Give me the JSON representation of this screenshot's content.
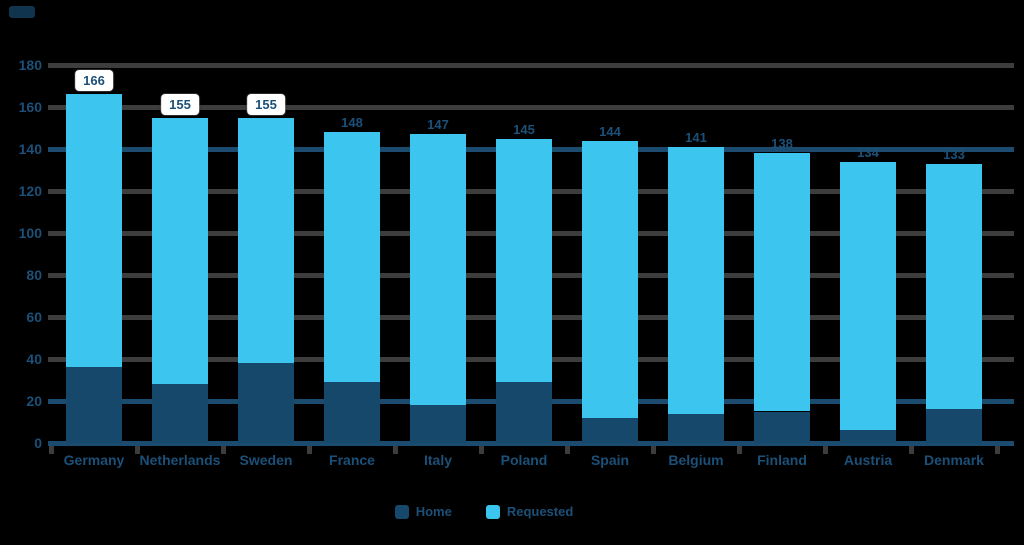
{
  "chart_data": {
    "type": "bar",
    "stacked": true,
    "title": "",
    "categories": [
      "Germany",
      "Netherlands",
      "Sweden",
      "France",
      "Italy",
      "Poland",
      "Spain",
      "Belgium",
      "Finland",
      "Austria",
      "Denmark"
    ],
    "series": [
      {
        "name": "Home",
        "color": "#15486b",
        "values": [
          36,
          28,
          38,
          29,
          18,
          29,
          12,
          14,
          15,
          6,
          16
        ]
      },
      {
        "name": "Requested",
        "color": "#3cc6ef",
        "values": [
          130,
          127,
          117,
          119,
          129,
          116,
          132,
          127,
          123,
          128,
          117
        ]
      }
    ],
    "totals": [
      166,
      155,
      155,
      148,
      147,
      145,
      144,
      141,
      138,
      134,
      133
    ],
    "total_label_pill": [
      true,
      true,
      true,
      false,
      false,
      false,
      false,
      false,
      false,
      false,
      false
    ],
    "y_axis": {
      "min": 0,
      "max": 180,
      "step": 20,
      "ticks": [
        180,
        160,
        140,
        120,
        100,
        80,
        60,
        40,
        20,
        0
      ]
    },
    "accent_gridlines": [
      140,
      20,
      0
    ],
    "grid": true,
    "legend": {
      "position": "bottom-center",
      "items": [
        {
          "label": "Home",
          "color": "#15486b"
        },
        {
          "label": "Requested",
          "color": "#3cc6ef"
        }
      ]
    }
  },
  "colors": {
    "background": "#000000",
    "bar_dark": "#15486b",
    "bar_light": "#3cc6ef",
    "gridline": "#3d3d3d",
    "accent_line": "#1b4c70",
    "axis_text": "#1c5078",
    "label_pill_bg": "#ffffff"
  }
}
